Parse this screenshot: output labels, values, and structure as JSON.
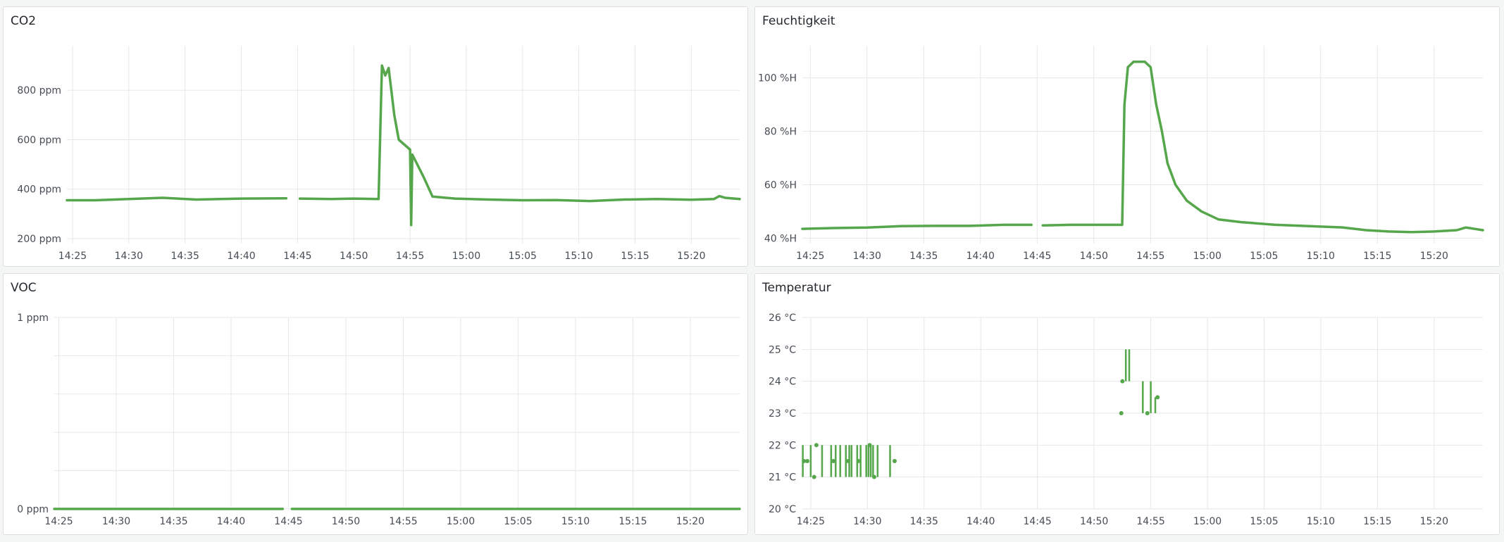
{
  "dashboard": {
    "accent_color": "#56a64b"
  },
  "chart_data": [
    {
      "id": "co2",
      "type": "line",
      "title": "CO2",
      "unit": "ppm",
      "x_ticks": [
        "14:25",
        "14:30",
        "14:35",
        "14:40",
        "14:45",
        "14:50",
        "14:55",
        "15:00",
        "15:05",
        "15:10",
        "15:15",
        "15:20"
      ],
      "y_ticks": [
        {
          "value": 200,
          "label": "200 ppm"
        },
        {
          "value": 400,
          "label": "400 ppm"
        },
        {
          "value": 600,
          "label": "600 ppm"
        },
        {
          "value": 800,
          "label": "800 ppm"
        }
      ],
      "ylim": [
        180,
        980
      ],
      "xlim": [
        "14:24.5",
        "15:24.3"
      ],
      "grid": true,
      "series_color": "#56a64b",
      "segments": [
        [
          [
            "14:24.5",
            355
          ],
          [
            "14:27",
            355
          ],
          [
            "14:30",
            360
          ],
          [
            "14:33",
            365
          ],
          [
            "14:36",
            358
          ],
          [
            "14:40",
            362
          ],
          [
            "14:44",
            363
          ]
        ],
        [
          [
            "14:45.2",
            362
          ],
          [
            "14:48",
            360
          ],
          [
            "14:50",
            362
          ],
          [
            "14:52.2",
            360
          ],
          [
            "14:52.5",
            900
          ],
          [
            "14:52.8",
            860
          ],
          [
            "14:53.1",
            890
          ],
          [
            "14:53.6",
            700
          ],
          [
            "14:54",
            600
          ],
          [
            "14:55",
            560
          ],
          [
            "14:55.1",
            255
          ],
          [
            "14:55.2",
            540
          ],
          [
            "14:56.2",
            450
          ],
          [
            "14:57",
            370
          ],
          [
            "14:59",
            362
          ],
          [
            "15:02",
            358
          ],
          [
            "15:05",
            355
          ],
          [
            "15:08",
            356
          ],
          [
            "15:11",
            352
          ],
          [
            "15:14",
            358
          ],
          [
            "15:17",
            360
          ],
          [
            "15:20",
            357
          ],
          [
            "15:22",
            360
          ],
          [
            "15:22.5",
            372
          ],
          [
            "15:23",
            365
          ],
          [
            "15:24.3",
            360
          ]
        ]
      ]
    },
    {
      "id": "feuchtigkeit",
      "type": "line",
      "title": "Feuchtigkeit",
      "unit": "%H",
      "x_ticks": [
        "14:25",
        "14:30",
        "14:35",
        "14:40",
        "14:45",
        "14:50",
        "14:55",
        "15:00",
        "15:05",
        "15:10",
        "15:15",
        "15:20"
      ],
      "y_ticks": [
        {
          "value": 40,
          "label": "40 %H"
        },
        {
          "value": 60,
          "label": "60 %H"
        },
        {
          "value": 80,
          "label": "80 %H"
        },
        {
          "value": 100,
          "label": "100 %H"
        }
      ],
      "ylim": [
        38,
        112
      ],
      "xlim": [
        "14:24.3",
        "15:24.3"
      ],
      "grid": true,
      "series_color": "#56a64b",
      "segments": [
        [
          [
            "14:24.3",
            43.5
          ],
          [
            "14:27",
            43.8
          ],
          [
            "14:30",
            44
          ],
          [
            "14:33",
            44.5
          ],
          [
            "14:36",
            44.6
          ],
          [
            "14:39",
            44.6
          ],
          [
            "14:42",
            45
          ],
          [
            "14:44.5",
            45
          ]
        ],
        [
          [
            "14:45.5",
            44.8
          ],
          [
            "14:48",
            45
          ],
          [
            "14:51",
            45
          ],
          [
            "14:52.5",
            45
          ],
          [
            "14:52.7",
            90
          ],
          [
            "14:53",
            104
          ],
          [
            "14:53.5",
            106
          ],
          [
            "14:54.5",
            106
          ],
          [
            "14:55",
            104
          ],
          [
            "14:55.5",
            90
          ],
          [
            "14:56",
            80
          ],
          [
            "14:56.5",
            68
          ],
          [
            "14:57.2",
            60
          ],
          [
            "14:58.2",
            54
          ],
          [
            "14:59.5",
            50
          ],
          [
            "15:01",
            47
          ],
          [
            "15:03",
            46
          ],
          [
            "15:06",
            45
          ],
          [
            "15:09",
            44.5
          ],
          [
            "15:12",
            44
          ],
          [
            "15:14",
            43
          ],
          [
            "15:16",
            42.5
          ],
          [
            "15:18",
            42.3
          ],
          [
            "15:20",
            42.5
          ],
          [
            "15:22",
            43
          ],
          [
            "15:22.8",
            44
          ],
          [
            "15:24.3",
            43
          ]
        ]
      ]
    },
    {
      "id": "voc",
      "type": "line",
      "title": "VOC",
      "unit": "ppm",
      "x_ticks": [
        "14:25",
        "14:30",
        "14:35",
        "14:40",
        "14:45",
        "14:50",
        "14:55",
        "15:00",
        "15:05",
        "15:10",
        "15:15",
        "15:20"
      ],
      "y_ticks": [
        {
          "value": 0,
          "label": "0 ppm"
        },
        {
          "value": 1,
          "label": "1 ppm"
        }
      ],
      "y_grid": [
        0,
        0.2,
        0.4,
        0.6,
        0.8,
        1
      ],
      "ylim": [
        0,
        1
      ],
      "xlim": [
        "14:24.6",
        "15:24.3"
      ],
      "grid": true,
      "series_color": "#56a64b",
      "segments": [
        [
          [
            "14:24.6",
            0
          ],
          [
            "14:44.5",
            0
          ]
        ],
        [
          [
            "14:45.3",
            0
          ],
          [
            "15:24.3",
            0
          ]
        ]
      ]
    },
    {
      "id": "temperatur",
      "type": "line",
      "title": "Temperatur",
      "unit": "°C",
      "x_ticks": [
        "14:25",
        "14:30",
        "14:35",
        "14:40",
        "14:45",
        "14:50",
        "14:55",
        "15:00",
        "15:05",
        "15:10",
        "15:15",
        "15:20"
      ],
      "y_ticks": [
        {
          "value": 20,
          "label": "20 °C"
        },
        {
          "value": 21,
          "label": "21 °C"
        },
        {
          "value": 22,
          "label": "22 °C"
        },
        {
          "value": 23,
          "label": "23 °C"
        },
        {
          "value": 24,
          "label": "24 °C"
        },
        {
          "value": 25,
          "label": "25 °C"
        },
        {
          "value": 26,
          "label": "26 °C"
        }
      ],
      "ylim": [
        20,
        26
      ],
      "xlim": [
        "14:24.2",
        "15:24.3"
      ],
      "grid": true,
      "series_color": "#56a64b",
      "jumps": [
        {
          "x": "14:24.3",
          "y1": 21,
          "y2": 22
        },
        {
          "x": "14:25.0",
          "y1": 21,
          "y2": 22
        },
        {
          "x": "14:26.0",
          "y1": 21,
          "y2": 22
        },
        {
          "x": "14:26.8",
          "y1": 21,
          "y2": 22
        },
        {
          "x": "14:27.2",
          "y1": 21,
          "y2": 22
        },
        {
          "x": "14:27.6",
          "y1": 21,
          "y2": 22
        },
        {
          "x": "14:28.1",
          "y1": 21,
          "y2": 22
        },
        {
          "x": "14:28.4",
          "y1": 21,
          "y2": 22
        },
        {
          "x": "14:28.6",
          "y1": 21,
          "y2": 22
        },
        {
          "x": "14:29.1",
          "y1": 21,
          "y2": 22
        },
        {
          "x": "14:29.4",
          "y1": 21,
          "y2": 22
        },
        {
          "x": "14:29.9",
          "y1": 21,
          "y2": 22
        },
        {
          "x": "14:30.1",
          "y1": 21,
          "y2": 22
        },
        {
          "x": "14:30.3",
          "y1": 21,
          "y2": 22
        },
        {
          "x": "14:30.5",
          "y1": 21,
          "y2": 22
        },
        {
          "x": "14:30.9",
          "y1": 21,
          "y2": 22
        },
        {
          "x": "14:32.0",
          "y1": 21,
          "y2": 22
        },
        {
          "x": "14:52.8",
          "y1": 24,
          "y2": 25
        },
        {
          "x": "14:53.1",
          "y1": 24,
          "y2": 25
        },
        {
          "x": "14:54.3",
          "y1": 23,
          "y2": 24
        },
        {
          "x": "14:55.0",
          "y1": 23,
          "y2": 24
        },
        {
          "x": "14:55.4",
          "y1": 23,
          "y2": 23.5
        }
      ],
      "points": [
        [
          "14:24.4",
          21.5
        ],
        [
          "14:24.7",
          21.5
        ],
        [
          "14:25.5",
          22
        ],
        [
          "14:25.3",
          21
        ],
        [
          "14:27.0",
          21.5
        ],
        [
          "14:28.3",
          21.5
        ],
        [
          "14:29.2",
          21.5
        ],
        [
          "14:30.2",
          22
        ],
        [
          "14:30.6",
          21
        ],
        [
          "14:32.4",
          21.5
        ],
        [
          "14:52.5",
          24
        ],
        [
          "14:52.4",
          23
        ],
        [
          "14:54.7",
          23
        ],
        [
          "14:55.6",
          23.5
        ]
      ]
    }
  ]
}
